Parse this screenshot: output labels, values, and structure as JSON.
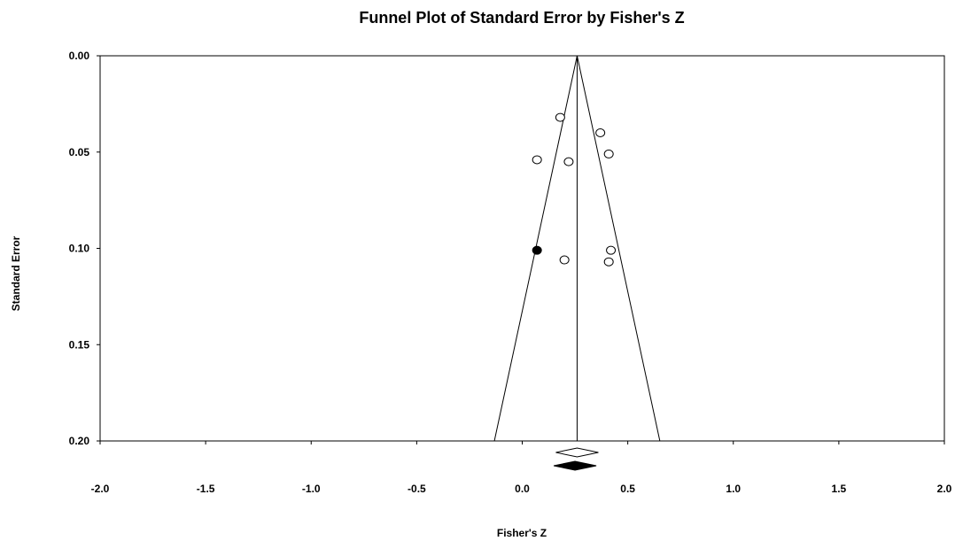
{
  "chart_data": {
    "type": "scatter",
    "title": "Funnel Plot of Standard Error by Fisher's Z",
    "xlabel": "Fisher's Z",
    "ylabel": "Standard Error",
    "xlim": [
      -2.0,
      2.0
    ],
    "ylim": [
      0.0,
      0.2
    ],
    "y_inverted": true,
    "x_ticks": [
      "-2.0",
      "-1.5",
      "-1.0",
      "-0.5",
      "0.0",
      "0.5",
      "1.0",
      "1.5",
      "2.0"
    ],
    "y_ticks": [
      "0.00",
      "0.05",
      "0.10",
      "0.15",
      "0.20"
    ],
    "grid": false,
    "observed_studies": [
      {
        "x": 0.18,
        "y": 0.032
      },
      {
        "x": 0.37,
        "y": 0.04
      },
      {
        "x": 0.41,
        "y": 0.051
      },
      {
        "x": 0.07,
        "y": 0.054
      },
      {
        "x": 0.22,
        "y": 0.055
      },
      {
        "x": 0.42,
        "y": 0.101
      },
      {
        "x": 0.2,
        "y": 0.106
      },
      {
        "x": 0.41,
        "y": 0.107
      }
    ],
    "imputed_studies": [
      {
        "x": 0.07,
        "y": 0.101
      }
    ],
    "combined_effect_observed": 0.26,
    "combined_effect_adjusted": 0.25,
    "funnel_apex": 0.26,
    "colors": {
      "observed": "#ffffff",
      "imputed": "#000000",
      "line": "#000000"
    }
  }
}
